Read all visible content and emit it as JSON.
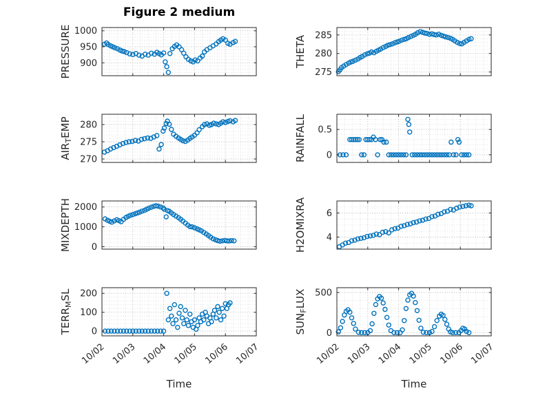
{
  "title": "Figure 2 medium",
  "xlabel": "Time",
  "colors": {
    "marker": "#0072BD",
    "axis": "#262626",
    "text": "#262626",
    "grid_major": "#b0b0b0",
    "grid_minor": "#d9d9d9",
    "plot_bg": "#ffffff"
  },
  "x_axis": {
    "lim": [
      0,
      5
    ],
    "tick_labels": [
      "10/02",
      "10/03",
      "10/04",
      "10/05",
      "10/06",
      "10/07"
    ],
    "minor_step": 0.25
  },
  "chart_data": [
    {
      "name": "PRESSURE",
      "type": "scatter",
      "row": 0,
      "col": 0,
      "ylabel_parts": {
        "pre": "PRESSURE",
        "sub": "",
        "post": ""
      },
      "ylim": [
        860,
        1010
      ],
      "yticks": [
        900,
        950,
        1000
      ],
      "yminor": 10,
      "x": [
        0.08,
        0.15,
        0.2,
        0.28,
        0.35,
        0.42,
        0.5,
        0.58,
        0.65,
        0.72,
        0.8,
        0.9,
        1.0,
        1.1,
        1.2,
        1.3,
        1.4,
        1.5,
        1.6,
        1.7,
        1.78,
        1.85,
        1.92,
        2.0,
        2.05,
        2.1,
        2.15,
        2.2,
        2.28,
        2.35,
        2.42,
        2.5,
        2.58,
        2.65,
        2.72,
        2.8,
        2.88,
        2.95,
        3.02,
        3.1,
        3.18,
        3.25,
        3.32,
        3.4,
        3.5,
        3.6,
        3.7,
        3.78,
        3.85,
        3.92,
        4.0,
        4.08,
        4.15,
        4.25,
        4.32
      ],
      "y": [
        958,
        962,
        957,
        953,
        950,
        947,
        944,
        940,
        937,
        935,
        932,
        928,
        926,
        929,
        924,
        921,
        927,
        924,
        930,
        927,
        933,
        929,
        925,
        931,
        903,
        888,
        870,
        929,
        944,
        951,
        956,
        950,
        941,
        930,
        919,
        911,
        906,
        903,
        909,
        906,
        915,
        921,
        934,
        941,
        947,
        953,
        959,
        966,
        971,
        975,
        971,
        961,
        958,
        963,
        967
      ]
    },
    {
      "name": "THETA",
      "type": "scatter",
      "row": 0,
      "col": 1,
      "ylabel_parts": {
        "pre": "THETA",
        "sub": "",
        "post": ""
      },
      "ylim": [
        274,
        287
      ],
      "yticks": [
        275,
        280,
        285
      ],
      "yminor": 1,
      "x": [
        0.05,
        0.1,
        0.15,
        0.22,
        0.3,
        0.38,
        0.45,
        0.52,
        0.6,
        0.68,
        0.75,
        0.82,
        0.9,
        0.98,
        1.05,
        1.12,
        1.2,
        1.28,
        1.35,
        1.42,
        1.5,
        1.58,
        1.65,
        1.72,
        1.8,
        1.88,
        1.95,
        2.02,
        2.1,
        2.18,
        2.25,
        2.32,
        2.4,
        2.48,
        2.55,
        2.62,
        2.7,
        2.78,
        2.85,
        2.92,
        3.0,
        3.08,
        3.15,
        3.22,
        3.3,
        3.38,
        3.45,
        3.52,
        3.6,
        3.68,
        3.75,
        3.82,
        3.9,
        3.98,
        4.05,
        4.12,
        4.2,
        4.28,
        4.35
      ],
      "y": [
        275.1,
        275.6,
        276.2,
        276.6,
        277.0,
        277.4,
        277.7,
        277.9,
        278.2,
        278.5,
        278.9,
        279.2,
        279.6,
        279.9,
        280.1,
        280.4,
        280.2,
        280.6,
        280.9,
        281.2,
        281.6,
        281.9,
        282.2,
        282.4,
        282.6,
        282.9,
        283.1,
        283.3,
        283.6,
        283.8,
        284.0,
        284.3,
        284.6,
        284.9,
        285.2,
        285.6,
        285.9,
        285.7,
        285.5,
        285.4,
        285.2,
        285.3,
        285.1,
        285.0,
        285.2,
        284.9,
        284.7,
        284.5,
        284.3,
        284.1,
        283.8,
        283.4,
        283.0,
        282.7,
        282.6,
        283.0,
        283.4,
        283.8,
        284.0
      ]
    },
    {
      "name": "AIR_TEMP",
      "type": "scatter",
      "row": 1,
      "col": 0,
      "ylabel_parts": {
        "pre": "AIR",
        "sub": "T",
        "post": "EMP"
      },
      "ylim": [
        269,
        283
      ],
      "yticks": [
        270,
        275,
        280
      ],
      "yminor": 1,
      "x": [
        0.08,
        0.18,
        0.28,
        0.38,
        0.48,
        0.58,
        0.68,
        0.78,
        0.88,
        0.98,
        1.08,
        1.18,
        1.28,
        1.38,
        1.48,
        1.58,
        1.68,
        1.78,
        1.85,
        1.92,
        1.98,
        2.02,
        2.08,
        2.12,
        2.18,
        2.25,
        2.32,
        2.4,
        2.48,
        2.55,
        2.62,
        2.7,
        2.78,
        2.85,
        2.92,
        3.0,
        3.08,
        3.15,
        3.25,
        3.32,
        3.4,
        3.48,
        3.55,
        3.62,
        3.7,
        3.78,
        3.85,
        3.92,
        4.0,
        4.08,
        4.15,
        4.25,
        4.32
      ],
      "y": [
        272.0,
        272.4,
        272.9,
        273.3,
        273.7,
        274.1,
        274.5,
        274.8,
        275.0,
        275.1,
        275.4,
        275.2,
        275.7,
        275.9,
        276.1,
        276.0,
        276.4,
        276.8,
        272.9,
        274.2,
        278.1,
        279.0,
        280.3,
        281.0,
        280.1,
        278.6,
        277.2,
        276.6,
        276.1,
        275.7,
        275.3,
        275.1,
        275.5,
        276.0,
        276.4,
        276.9,
        277.6,
        278.5,
        279.4,
        280.0,
        280.2,
        279.8,
        280.0,
        280.4,
        280.2,
        280.0,
        280.4,
        280.8,
        280.6,
        280.9,
        281.1,
        280.8,
        281.2
      ]
    },
    {
      "name": "RAINFALL",
      "type": "scatter",
      "row": 1,
      "col": 1,
      "ylabel_parts": {
        "pre": "RAINFALL",
        "sub": "",
        "post": ""
      },
      "ylim": [
        -0.15,
        0.8
      ],
      "yticks": [
        0,
        0.5
      ],
      "yminor": 0.1,
      "x": [
        0.1,
        0.2,
        0.3,
        0.42,
        0.48,
        0.54,
        0.6,
        0.66,
        0.72,
        0.8,
        0.88,
        0.94,
        1.0,
        1.06,
        1.12,
        1.18,
        1.25,
        1.32,
        1.4,
        1.46,
        1.52,
        1.6,
        1.68,
        1.76,
        1.84,
        1.92,
        2.0,
        2.08,
        2.16,
        2.24,
        2.3,
        2.33,
        2.36,
        2.44,
        2.52,
        2.6,
        2.68,
        2.76,
        2.84,
        2.92,
        3.0,
        3.08,
        3.16,
        3.24,
        3.32,
        3.4,
        3.48,
        3.56,
        3.64,
        3.7,
        3.78,
        3.86,
        3.92,
        3.96,
        4.04,
        4.12,
        4.2,
        4.28
      ],
      "y": [
        0,
        0,
        0,
        0.3,
        0.3,
        0.3,
        0.3,
        0.3,
        0.3,
        0,
        0,
        0.3,
        0.3,
        0.3,
        0.3,
        0.35,
        0.3,
        0,
        0.3,
        0.3,
        0.25,
        0.25,
        0,
        0,
        0,
        0,
        0,
        0,
        0,
        0,
        0.7,
        0.6,
        0.45,
        0,
        0,
        0,
        0,
        0,
        0,
        0,
        0,
        0,
        0,
        0,
        0,
        0,
        0,
        0,
        0,
        0.25,
        0,
        0,
        0.3,
        0.25,
        0,
        0,
        0,
        0
      ]
    },
    {
      "name": "MIXDEPTH",
      "type": "scatter",
      "row": 2,
      "col": 0,
      "ylabel_parts": {
        "pre": "MIXDEPTH",
        "sub": "",
        "post": ""
      },
      "ylim": [
        -120,
        2300
      ],
      "yticks": [
        0,
        1000,
        2000
      ],
      "yminor": 200,
      "x": [
        0.1,
        0.18,
        0.25,
        0.32,
        0.4,
        0.48,
        0.55,
        0.62,
        0.7,
        0.78,
        0.85,
        0.92,
        1.0,
        1.08,
        1.15,
        1.22,
        1.3,
        1.38,
        1.45,
        1.52,
        1.6,
        1.68,
        1.75,
        1.82,
        1.9,
        1.98,
        2.02,
        2.08,
        2.12,
        2.18,
        2.25,
        2.32,
        2.4,
        2.48,
        2.55,
        2.62,
        2.7,
        2.78,
        2.85,
        2.92,
        3.0,
        3.08,
        3.15,
        3.22,
        3.3,
        3.38,
        3.45,
        3.52,
        3.6,
        3.68,
        3.75,
        3.82,
        3.9,
        3.98,
        4.05,
        4.12,
        4.2,
        4.28
      ],
      "y": [
        1400,
        1330,
        1280,
        1240,
        1300,
        1360,
        1310,
        1260,
        1380,
        1470,
        1530,
        1580,
        1620,
        1660,
        1700,
        1740,
        1790,
        1830,
        1890,
        1940,
        1990,
        2030,
        2060,
        2040,
        2000,
        1950,
        1880,
        1500,
        1820,
        1780,
        1700,
        1620,
        1540,
        1460,
        1380,
        1290,
        1190,
        1090,
        1010,
        1000,
        950,
        900,
        850,
        800,
        720,
        640,
        560,
        480,
        400,
        350,
        310,
        280,
        300,
        320,
        300,
        290,
        310,
        300
      ]
    },
    {
      "name": "H2OMIXRA",
      "type": "scatter",
      "row": 2,
      "col": 1,
      "ylabel_parts": {
        "pre": "H2OMIXRA",
        "sub": "",
        "post": ""
      },
      "ylim": [
        3,
        7
      ],
      "yticks": [
        4,
        6
      ],
      "yminor": 0.5,
      "x": [
        0.08,
        0.18,
        0.28,
        0.38,
        0.48,
        0.58,
        0.68,
        0.78,
        0.88,
        0.98,
        1.08,
        1.18,
        1.28,
        1.38,
        1.48,
        1.58,
        1.68,
        1.78,
        1.88,
        1.98,
        2.08,
        2.18,
        2.28,
        2.38,
        2.48,
        2.58,
        2.68,
        2.78,
        2.88,
        2.98,
        3.08,
        3.18,
        3.28,
        3.38,
        3.48,
        3.58,
        3.68,
        3.78,
        3.88,
        3.98,
        4.08,
        4.18,
        4.28,
        4.35
      ],
      "y": [
        3.2,
        3.35,
        3.5,
        3.55,
        3.7,
        3.75,
        3.85,
        3.9,
        3.95,
        4.05,
        4.1,
        4.15,
        4.25,
        4.2,
        4.4,
        4.45,
        4.35,
        4.6,
        4.7,
        4.75,
        4.9,
        4.95,
        5.05,
        5.1,
        5.2,
        5.25,
        5.35,
        5.4,
        5.5,
        5.55,
        5.7,
        5.75,
        5.9,
        5.95,
        6.1,
        6.15,
        6.3,
        6.25,
        6.4,
        6.5,
        6.55,
        6.6,
        6.65,
        6.6
      ]
    },
    {
      "name": "TERR_MSL",
      "type": "scatter",
      "row": 3,
      "col": 0,
      "ylabel_parts": {
        "pre": "TERR",
        "sub": "M",
        "post": "SL"
      },
      "ylim": [
        -25,
        230
      ],
      "yticks": [
        0,
        100,
        200
      ],
      "yminor": 20,
      "x": [
        0.1,
        0.2,
        0.3,
        0.4,
        0.5,
        0.6,
        0.7,
        0.8,
        0.9,
        1.0,
        1.1,
        1.2,
        1.3,
        1.4,
        1.5,
        1.6,
        1.7,
        1.8,
        1.9,
        2.0,
        2.1,
        2.15,
        2.2,
        2.25,
        2.3,
        2.35,
        2.4,
        2.45,
        2.5,
        2.55,
        2.6,
        2.65,
        2.7,
        2.75,
        2.8,
        2.85,
        2.9,
        2.95,
        3.0,
        3.05,
        3.1,
        3.15,
        3.2,
        3.25,
        3.3,
        3.35,
        3.4,
        3.45,
        3.5,
        3.55,
        3.6,
        3.65,
        3.7,
        3.75,
        3.8,
        3.85,
        3.9,
        3.95,
        4.0,
        4.05,
        4.1,
        4.15
      ],
      "y": [
        0,
        0,
        0,
        0,
        0,
        0,
        0,
        0,
        0,
        0,
        0,
        0,
        0,
        0,
        0,
        0,
        0,
        0,
        0,
        0,
        200,
        60,
        120,
        80,
        40,
        140,
        60,
        20,
        95,
        130,
        70,
        40,
        110,
        60,
        30,
        90,
        50,
        20,
        60,
        10,
        30,
        70,
        50,
        90,
        60,
        100,
        80,
        40,
        70,
        50,
        90,
        110,
        70,
        130,
        100,
        60,
        120,
        80,
        145,
        120,
        140,
        150
      ]
    },
    {
      "name": "SUN_FLUX",
      "type": "scatter",
      "row": 3,
      "col": 1,
      "ylabel_parts": {
        "pre": "SUN",
        "sub": "F",
        "post": "LUX"
      },
      "ylim": [
        -40,
        560
      ],
      "yticks": [
        0,
        500
      ],
      "yminor": 100,
      "x": [
        0.05,
        0.12,
        0.18,
        0.24,
        0.3,
        0.36,
        0.42,
        0.48,
        0.54,
        0.6,
        0.7,
        0.8,
        0.9,
        1.0,
        1.08,
        1.14,
        1.2,
        1.26,
        1.32,
        1.38,
        1.44,
        1.5,
        1.56,
        1.62,
        1.68,
        1.75,
        1.85,
        1.95,
        2.05,
        2.12,
        2.18,
        2.24,
        2.3,
        2.36,
        2.42,
        2.48,
        2.54,
        2.6,
        2.66,
        2.72,
        2.8,
        2.9,
        3.0,
        3.08,
        3.16,
        3.24,
        3.32,
        3.38,
        3.44,
        3.5,
        3.56,
        3.62,
        3.68,
        3.75,
        3.85,
        3.95,
        4.02,
        4.08,
        4.14,
        4.2,
        4.28
      ],
      "y": [
        10,
        60,
        140,
        220,
        265,
        285,
        255,
        185,
        115,
        45,
        5,
        0,
        0,
        0,
        25,
        110,
        240,
        350,
        420,
        450,
        430,
        370,
        290,
        190,
        95,
        25,
        0,
        0,
        0,
        35,
        150,
        300,
        405,
        470,
        490,
        455,
        375,
        275,
        155,
        55,
        5,
        0,
        0,
        15,
        75,
        150,
        205,
        230,
        215,
        165,
        105,
        45,
        10,
        0,
        0,
        0,
        25,
        55,
        45,
        15,
        0
      ]
    }
  ]
}
